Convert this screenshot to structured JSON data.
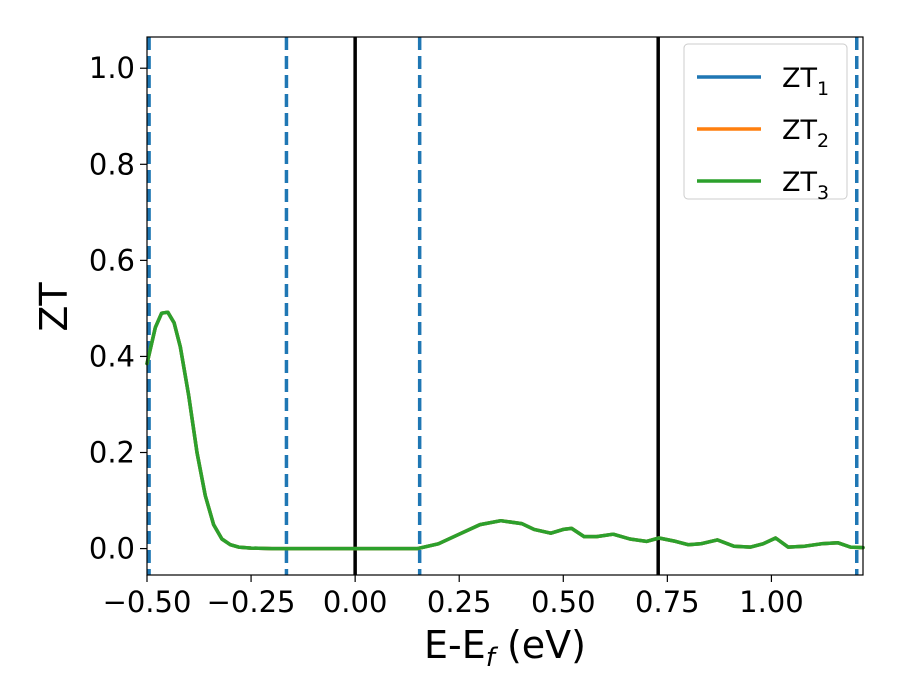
{
  "chart_data": {
    "type": "line",
    "xlabel": "E-E",
    "xlabel_sub": "f",
    "xlabel_unit": " (eV)",
    "ylabel": "ZT",
    "xlim": [
      -0.5,
      1.22
    ],
    "ylim": [
      -0.055,
      1.065
    ],
    "grid": false,
    "legend_position": "top-right",
    "xticks": [
      {
        "value": -0.5,
        "label": "−0.50"
      },
      {
        "value": -0.25,
        "label": "−0.25"
      },
      {
        "value": 0.0,
        "label": "0.00"
      },
      {
        "value": 0.25,
        "label": "0.25"
      },
      {
        "value": 0.5,
        "label": "0.50"
      },
      {
        "value": 0.75,
        "label": "0.75"
      },
      {
        "value": 1.0,
        "label": "1.00"
      }
    ],
    "yticks": [
      {
        "value": 0.0,
        "label": "0.0"
      },
      {
        "value": 0.2,
        "label": "0.2"
      },
      {
        "value": 0.4,
        "label": "0.4"
      },
      {
        "value": 0.6,
        "label": "0.6"
      },
      {
        "value": 0.8,
        "label": "0.8"
      },
      {
        "value": 1.0,
        "label": "1.0"
      }
    ],
    "vlines": [
      {
        "x": -0.495,
        "style": "dashed",
        "color": "#1f77b4"
      },
      {
        "x": -0.165,
        "style": "dashed",
        "color": "#1f77b4"
      },
      {
        "x": 0.0,
        "style": "solid",
        "color": "#000000"
      },
      {
        "x": 0.155,
        "style": "dashed",
        "color": "#1f77b4"
      },
      {
        "x": 0.728,
        "style": "solid",
        "color": "#000000"
      },
      {
        "x": 1.205,
        "style": "dashed",
        "color": "#1f77b4"
      }
    ],
    "series": [
      {
        "name": "ZT",
        "name_sub": "1",
        "color": "#1f77b4",
        "x": [
          -0.5,
          -0.48,
          -0.465,
          -0.45,
          -0.435,
          -0.42,
          -0.4,
          -0.38,
          -0.36,
          -0.34,
          -0.32,
          -0.3,
          -0.28,
          -0.25,
          -0.2,
          -0.15,
          -0.1,
          0.0,
          0.1,
          0.15,
          0.2,
          0.25,
          0.3,
          0.35,
          0.4,
          0.43,
          0.47,
          0.5,
          0.52,
          0.55,
          0.58,
          0.62,
          0.66,
          0.7,
          0.73,
          0.77,
          0.8,
          0.83,
          0.87,
          0.91,
          0.95,
          0.98,
          1.01,
          1.04,
          1.08,
          1.12,
          1.16,
          1.19,
          1.22
        ],
        "y": [
          0.385,
          0.46,
          0.49,
          0.492,
          0.47,
          0.42,
          0.32,
          0.2,
          0.11,
          0.05,
          0.02,
          0.008,
          0.003,
          0.001,
          0.0,
          0.0,
          0.0,
          0.0,
          0.0,
          0.0,
          0.01,
          0.03,
          0.05,
          0.058,
          0.052,
          0.04,
          0.032,
          0.04,
          0.042,
          0.025,
          0.025,
          0.03,
          0.02,
          0.015,
          0.022,
          0.015,
          0.008,
          0.01,
          0.018,
          0.005,
          0.003,
          0.01,
          0.022,
          0.003,
          0.005,
          0.01,
          0.012,
          0.003,
          0.002
        ]
      },
      {
        "name": "ZT",
        "name_sub": "2",
        "color": "#ff7f0e",
        "x": [
          -0.5,
          -0.48,
          -0.465,
          -0.45,
          -0.435,
          -0.42,
          -0.4,
          -0.38,
          -0.36,
          -0.34,
          -0.32,
          -0.3,
          -0.28,
          -0.25,
          -0.2,
          -0.15,
          -0.1,
          0.0,
          0.1,
          0.15,
          0.2,
          0.25,
          0.3,
          0.35,
          0.4,
          0.43,
          0.47,
          0.5,
          0.52,
          0.55,
          0.58,
          0.62,
          0.66,
          0.7,
          0.73,
          0.77,
          0.8,
          0.83,
          0.87,
          0.91,
          0.95,
          0.98,
          1.01,
          1.04,
          1.08,
          1.12,
          1.16,
          1.19,
          1.22
        ],
        "y": [
          0.385,
          0.46,
          0.49,
          0.492,
          0.47,
          0.42,
          0.32,
          0.2,
          0.11,
          0.05,
          0.02,
          0.008,
          0.003,
          0.001,
          0.0,
          0.0,
          0.0,
          0.0,
          0.0,
          0.0,
          0.01,
          0.03,
          0.05,
          0.058,
          0.052,
          0.04,
          0.032,
          0.04,
          0.042,
          0.025,
          0.025,
          0.03,
          0.02,
          0.015,
          0.022,
          0.015,
          0.008,
          0.01,
          0.018,
          0.005,
          0.003,
          0.01,
          0.022,
          0.003,
          0.005,
          0.01,
          0.012,
          0.003,
          0.002
        ]
      },
      {
        "name": "ZT",
        "name_sub": "3",
        "color": "#2ca02c",
        "x": [
          -0.5,
          -0.48,
          -0.465,
          -0.45,
          -0.435,
          -0.42,
          -0.4,
          -0.38,
          -0.36,
          -0.34,
          -0.32,
          -0.3,
          -0.28,
          -0.25,
          -0.2,
          -0.15,
          -0.1,
          0.0,
          0.1,
          0.15,
          0.2,
          0.25,
          0.3,
          0.35,
          0.4,
          0.43,
          0.47,
          0.5,
          0.52,
          0.55,
          0.58,
          0.62,
          0.66,
          0.7,
          0.73,
          0.77,
          0.8,
          0.83,
          0.87,
          0.91,
          0.95,
          0.98,
          1.01,
          1.04,
          1.08,
          1.12,
          1.16,
          1.19,
          1.22
        ],
        "y": [
          0.385,
          0.46,
          0.49,
          0.492,
          0.47,
          0.42,
          0.32,
          0.2,
          0.11,
          0.05,
          0.02,
          0.008,
          0.003,
          0.001,
          0.0,
          0.0,
          0.0,
          0.0,
          0.0,
          0.0,
          0.01,
          0.03,
          0.05,
          0.058,
          0.052,
          0.04,
          0.032,
          0.04,
          0.042,
          0.025,
          0.025,
          0.03,
          0.02,
          0.015,
          0.022,
          0.015,
          0.008,
          0.01,
          0.018,
          0.005,
          0.003,
          0.01,
          0.022,
          0.003,
          0.005,
          0.01,
          0.012,
          0.003,
          0.002
        ]
      }
    ]
  }
}
